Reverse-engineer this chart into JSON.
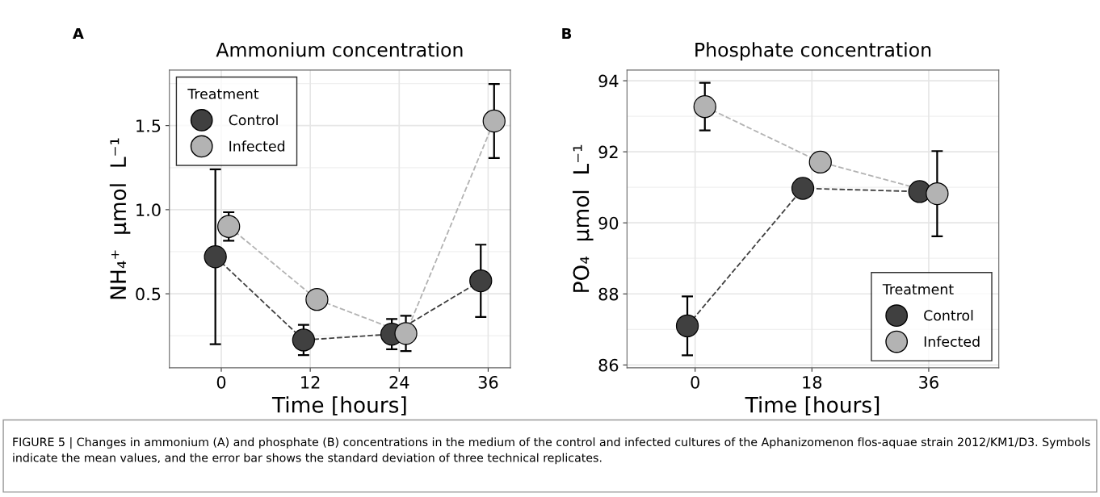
{
  "chart_data": [
    {
      "type": "line",
      "title": "Ammonium concentration",
      "xlabel": "Time [hours]",
      "ylabel": "NH₄⁺  μmol  L⁻¹",
      "legend_title": "Treatment",
      "legend": "top left",
      "grid": true,
      "marker": "circle",
      "line_style": "dashed",
      "xlim": [
        -7,
        39
      ],
      "xticks": [
        0,
        12,
        24,
        36
      ],
      "ylim": [
        0.06,
        1.83
      ],
      "yticks": [
        0.5,
        {
          "value": 1.0,
          "label": "1.0"
        },
        1.5
      ],
      "annotations": [
        "A",
        "FIGURE 5 | Changes in ammonium (A) and phosphate (B) concentrations in the medium of the control and infected cultures of the Aphanizomenon flos-aquae strain 2012/KM1/D3. Symbols indicate the mean values, and the error bar shows the standard deviation of three technical replicates."
      ],
      "series": [
        {
          "name": "Control",
          "color": "#404040",
          "x": [
            -0.8,
            11.1,
            23.0,
            35.0
          ],
          "values": [
            0.72,
            0.225,
            0.26,
            0.577
          ],
          "errors": [
            0.52,
            0.09,
            0.09,
            0.215
          ]
        },
        {
          "name": "Infected",
          "color": "#b3b3b3",
          "x": [
            1.0,
            12.9,
            24.9,
            36.8
          ],
          "values": [
            0.9,
            0.466,
            0.264,
            1.527
          ],
          "errors": [
            0.085,
            null,
            0.105,
            0.22
          ]
        }
      ]
    },
    {
      "type": "line",
      "title": "Phosphate concentration",
      "xlabel": "Time [hours]",
      "ylabel": "PO₄  μmol  L⁻¹",
      "legend_title": "Treatment",
      "legend": "bottom right",
      "grid": true,
      "marker": "circle",
      "line_style": "dashed",
      "xlim": [
        -10.5,
        46.8
      ],
      "xticks": [
        0,
        18,
        36
      ],
      "ylim": [
        85.92,
        94.3
      ],
      "yticks": [
        86,
        88,
        90,
        92,
        94
      ],
      "annotations": [
        "B"
      ],
      "series": [
        {
          "name": "Control",
          "color": "#404040",
          "x": [
            -1.2,
            16.6,
            34.6
          ],
          "values": [
            87.1,
            90.97,
            90.88
          ],
          "errors": [
            0.83,
            0.14,
            null
          ]
        },
        {
          "name": "Infected",
          "color": "#b3b3b3",
          "x": [
            1.5,
            19.3,
            37.3
          ],
          "values": [
            93.27,
            91.71,
            90.82
          ],
          "errors": [
            0.67,
            null,
            1.2
          ]
        }
      ]
    }
  ]
}
